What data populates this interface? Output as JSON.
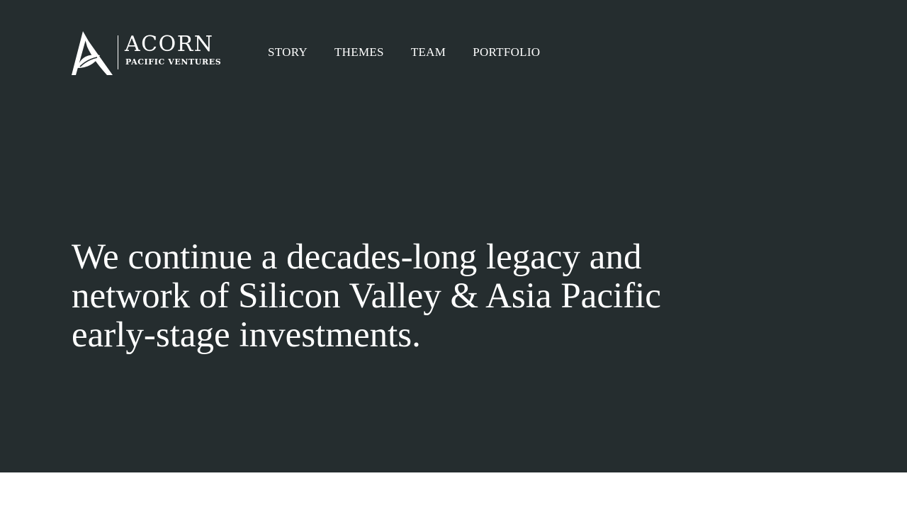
{
  "brand": {
    "name": "ACORN",
    "tagline": "PACIFIC VENTURES"
  },
  "nav": {
    "items": [
      {
        "label": "STORY"
      },
      {
        "label": "THEMES"
      },
      {
        "label": "TEAM"
      },
      {
        "label": "PORTFOLIO"
      }
    ]
  },
  "hero": {
    "headline": "We continue a decades-long legacy and network of Silicon Valley & Asia Pacific early-stage investments."
  },
  "colors": {
    "hero_background": "#252d2f",
    "text": "#ffffff",
    "page_background": "#ffffff"
  }
}
